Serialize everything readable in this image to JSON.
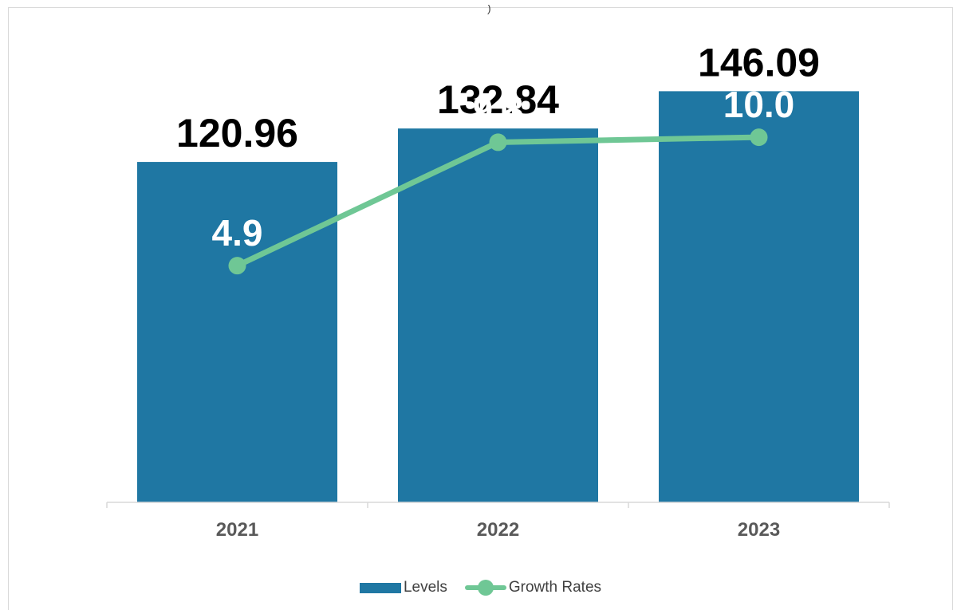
{
  "chart_data": {
    "type": "bar",
    "categories": [
      "2021",
      "2022",
      "2023"
    ],
    "series": [
      {
        "name": "Levels",
        "type": "bar",
        "values": [
          120.96,
          132.84,
          146.09
        ],
        "color": "#1f77a3"
      },
      {
        "name": "Growth Rates",
        "type": "line",
        "values": [
          4.9,
          9.8,
          10.0
        ],
        "color": "#6fc795"
      }
    ],
    "bar_labels": [
      "120.96",
      "132.84",
      "146.09"
    ],
    "line_labels": [
      "4.9",
      "9.8",
      "10.0"
    ],
    "top_fragment": ")",
    "title": "",
    "xlabel": "",
    "ylabel": "",
    "ylim": [
      0,
      170
    ],
    "y2lim": [
      -4.5,
      14.5
    ],
    "grid": false,
    "legend_position": "bottom"
  }
}
